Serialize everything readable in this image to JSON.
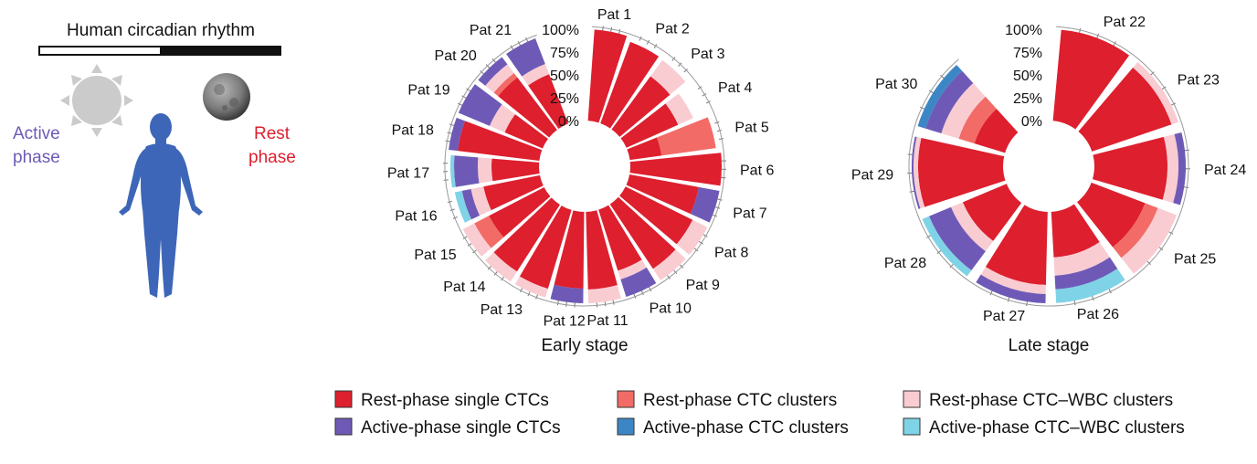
{
  "header": {
    "rhythm_title": "Human circadian rhythm",
    "active_label_line1": "Active",
    "active_label_line2": "phase",
    "rest_label_line1": "Rest",
    "rest_label_line2": "phase"
  },
  "colors": {
    "rest_single": "#dd1f2e",
    "rest_clusters": "#f26b66",
    "rest_wbc": "#f9ccd2",
    "active_single": "#6e5ab6",
    "active_clusters": "#3d86c6",
    "active_wbc": "#7fd3e6",
    "human": "#3d66b8",
    "active_text": "#6e5ab6",
    "rest_text": "#dd1f2e"
  },
  "icons": {
    "sun": "sun-icon",
    "moon": "moon-icon",
    "human": "human-figure-icon"
  },
  "legend": [
    {
      "key": "rest_single",
      "label": "Rest-phase single CTCs"
    },
    {
      "key": "rest_clusters",
      "label": "Rest-phase CTC clusters"
    },
    {
      "key": "rest_wbc",
      "label": "Rest-phase CTC–WBC clusters"
    },
    {
      "key": "active_single",
      "label": "Active-phase single CTCs"
    },
    {
      "key": "active_clusters",
      "label": "Active-phase CTC clusters"
    },
    {
      "key": "active_wbc",
      "label": "Active-phase CTC–WBC clusters"
    }
  ],
  "chart_data": [
    {
      "type": "radial-bar",
      "title": "Early stage",
      "tick_labels": [
        "100%",
        "75%",
        "50%",
        "25%",
        "0%"
      ],
      "categories": [
        "Pat 1",
        "Pat 2",
        "Pat 3",
        "Pat 4",
        "Pat 5",
        "Pat 6",
        "Pat 7",
        "Pat 8",
        "Pat 9",
        "Pat 10",
        "Pat 11",
        "Pat 12",
        "Pat 13",
        "Pat 14",
        "Pat 15",
        "Pat 16",
        "Pat 17",
        "Pat 18",
        "Pat 19",
        "Pat 20",
        "Pat 21"
      ],
      "stacks": [
        [
          1.0,
          0,
          0,
          0,
          0,
          0
        ],
        [
          0.95,
          0,
          0,
          0,
          0,
          0
        ],
        [
          0.72,
          0,
          0.22,
          0,
          0,
          0
        ],
        [
          0.62,
          0,
          0.18,
          0,
          0,
          0
        ],
        [
          0.35,
          0.6,
          0,
          0,
          0,
          0
        ],
        [
          1.0,
          0,
          0,
          0,
          0,
          0
        ],
        [
          0.77,
          0,
          0,
          0.23,
          0,
          0
        ],
        [
          0.82,
          0,
          0.18,
          0,
          0,
          0
        ],
        [
          0.85,
          0,
          0.15,
          0,
          0,
          0
        ],
        [
          0.7,
          0,
          0.1,
          0.2,
          0,
          0
        ],
        [
          0.85,
          0,
          0.15,
          0,
          0,
          0
        ],
        [
          0.84,
          0,
          0,
          0.16,
          0,
          0
        ],
        [
          0.9,
          0,
          0.1,
          0,
          0,
          0
        ],
        [
          0.87,
          0,
          0.13,
          0,
          0,
          0
        ],
        [
          0.68,
          0.18,
          0.14,
          0,
          0,
          0
        ],
        [
          0.63,
          0,
          0.14,
          0.1,
          0,
          0.08
        ],
        [
          0.52,
          0,
          0.15,
          0.26,
          0,
          0.04
        ],
        [
          0.9,
          0,
          0,
          0.1,
          0,
          0
        ],
        [
          0.45,
          0,
          0.18,
          0.37,
          0,
          0
        ],
        [
          0.72,
          0.06,
          0.12,
          0.1,
          0,
          0
        ],
        [
          0.58,
          0,
          0.12,
          0.3,
          0,
          0
        ]
      ]
    },
    {
      "type": "radial-bar",
      "title": "Late stage",
      "tick_labels": [
        "100%",
        "75%",
        "50%",
        "25%",
        "0%"
      ],
      "categories": [
        "Pat 22",
        "Pat 23",
        "Pat 24",
        "Pat 25",
        "Pat 26",
        "Pat 27",
        "Pat 28",
        "Pat 29",
        "Pat 30"
      ],
      "stacks": [
        [
          1.0,
          0,
          0,
          0,
          0,
          0
        ],
        [
          0.92,
          0,
          0.08,
          0,
          0,
          0
        ],
        [
          0.8,
          0,
          0.12,
          0.08,
          0,
          0
        ],
        [
          0.63,
          0.15,
          0.22,
          0,
          0,
          0
        ],
        [
          0.5,
          0,
          0.2,
          0.15,
          0,
          0.15
        ],
        [
          0.8,
          0,
          0.1,
          0.1,
          0,
          0
        ],
        [
          0.52,
          0,
          0.14,
          0.26,
          0,
          0.08
        ],
        [
          0.93,
          0,
          0.05,
          0.02,
          0,
          0
        ],
        [
          0.35,
          0.18,
          0.2,
          0.18,
          0.09,
          0
        ]
      ]
    }
  ]
}
